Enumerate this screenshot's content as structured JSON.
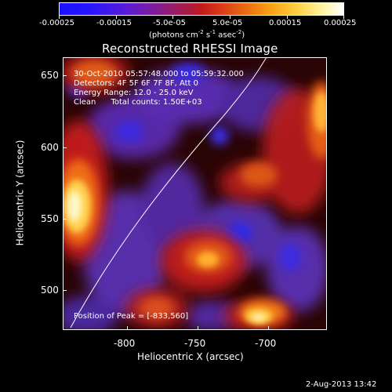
{
  "colorbar": {
    "tick_labels": [
      "-0.00025",
      "-0.00015",
      "-5.0e-05",
      "5.0e-05",
      "0.00015",
      "0.00025"
    ],
    "unit_prefix": "(photons cm",
    "unit_sup1": "-2",
    "unit_mid1": " s",
    "unit_sup2": "-1",
    "unit_mid2": " asec",
    "unit_sup3": "-2",
    "unit_suffix": ")"
  },
  "plot": {
    "title": "Reconstructed RHESSI Image",
    "x_label": "Heliocentric X (arcsec)",
    "y_label": "Heliocentric Y (arcsec)",
    "x_ticks": [
      "-800",
      "-750",
      "-700"
    ],
    "y_ticks": [
      "650",
      "600",
      "550",
      "500"
    ],
    "info_lines": [
      "30-Oct-2010 05:57:48.000 to 05:59:32.000",
      "Detectors: 4F 5F 6F 7F 8F, Att 0",
      "Energy Range: 12.0 - 25.0 keV",
      "Clean      Total counts: 1.50E+03"
    ],
    "peak_text": "Position of Peak = [-833,560]"
  },
  "footer": {
    "date_stamp": "2-Aug-2013 13:42"
  }
}
